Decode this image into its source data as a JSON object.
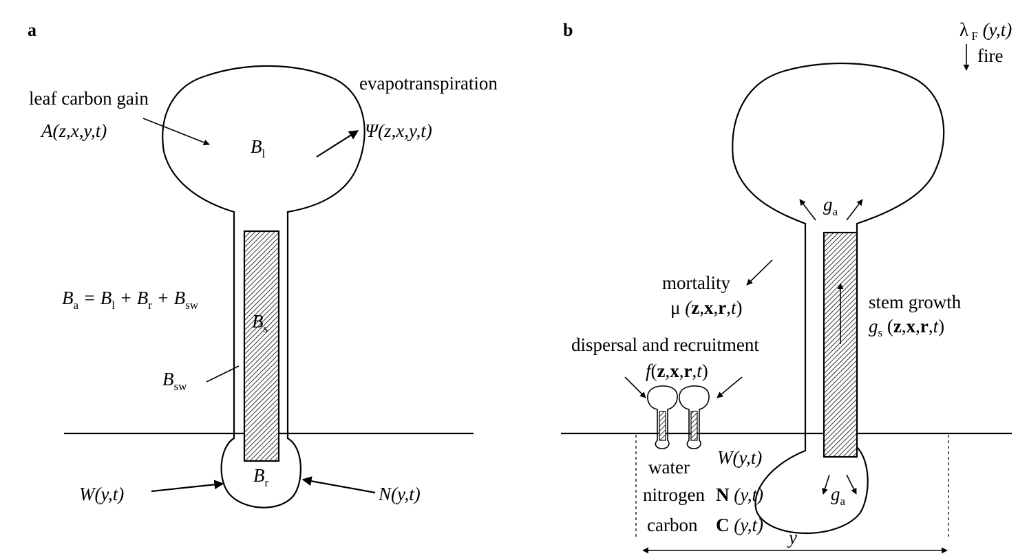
{
  "panel_a": {
    "label": "a",
    "leaf_carbon_gain": "leaf carbon gain",
    "A_func": "A(z,x,y,t)",
    "evapotranspiration": "evapotranspiration",
    "psi_func": "Ψ(z,x,y,t)",
    "B_l": "Bl",
    "B_a_eq": "Ba = Bl + Br + Bsw",
    "B_s": "Bs",
    "B_sw": "Bsw",
    "B_r": "Br",
    "W_func": "W(y,t)",
    "N_func": "N(y,t)"
  },
  "panel_b": {
    "label": "b",
    "fire_rate": "λF (y,t)",
    "fire": "fire",
    "g_a_top": "ga",
    "mortality": "mortality",
    "mu_func": "μ (z,x,r,t)",
    "stem_growth": "stem growth",
    "g_s_func": "gs (z,x,r,t)",
    "dispersal": "dispersal and recruitment",
    "f_func": "f(z,x,r,t)",
    "water": "water",
    "W_func": "W(y,t)",
    "nitrogen": "nitrogen",
    "N_func": "N (y,t)",
    "carbon": "carbon",
    "C_func": "C (y,t)",
    "g_a_bottom": "ga",
    "y_label": "y"
  }
}
